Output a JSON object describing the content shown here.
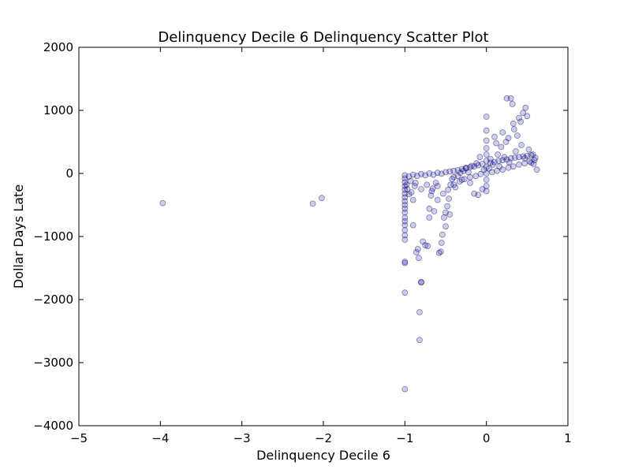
{
  "chart_data": {
    "type": "scatter",
    "title": "Delinquency Decile 6 Delinquency Scatter Plot",
    "xlabel": "Delinquency Decile 6",
    "ylabel": "Dollar Days Late",
    "xlim": [
      -5,
      1
    ],
    "ylim": [
      -4000,
      2000
    ],
    "xticks": [
      -5,
      -4,
      -3,
      -2,
      -1,
      0,
      1
    ],
    "yticks": [
      -4000,
      -3000,
      -2000,
      -1000,
      0,
      1000,
      2000
    ],
    "xtick_labels": [
      "−5",
      "−4",
      "−3",
      "−2",
      "−1",
      "0",
      "1"
    ],
    "ytick_labels": [
      "−4000",
      "−3000",
      "−2000",
      "−1000",
      "0",
      "1000",
      "2000"
    ],
    "grid": false,
    "legend": "none",
    "marker_color": "#0000ff",
    "marker_alpha": 0.2,
    "series": [
      {
        "points": [
          {
            "x": -3.97,
            "y": -470
          },
          {
            "x": -2.13,
            "y": -480
          },
          {
            "x": -2.02,
            "y": -390
          },
          {
            "x": -1.0,
            "y": -3420
          },
          {
            "x": -1.0,
            "y": -1890
          },
          {
            "x": -1.0,
            "y": -1420
          },
          {
            "x": -1.0,
            "y": -1400
          },
          {
            "x": -1.0,
            "y": -1050
          },
          {
            "x": -1.0,
            "y": -980
          },
          {
            "x": -1.0,
            "y": -900
          },
          {
            "x": -1.0,
            "y": -820
          },
          {
            "x": -1.0,
            "y": -760
          },
          {
            "x": -1.0,
            "y": -700
          },
          {
            "x": -1.0,
            "y": -620
          },
          {
            "x": -1.0,
            "y": -560
          },
          {
            "x": -1.0,
            "y": -500
          },
          {
            "x": -1.0,
            "y": -440
          },
          {
            "x": -1.0,
            "y": -380
          },
          {
            "x": -1.0,
            "y": -320
          },
          {
            "x": -1.0,
            "y": -260
          },
          {
            "x": -1.0,
            "y": -200
          },
          {
            "x": -1.0,
            "y": -140
          },
          {
            "x": -1.0,
            "y": -80
          },
          {
            "x": -1.0,
            "y": -30
          },
          {
            "x": -0.97,
            "y": -250
          },
          {
            "x": -0.95,
            "y": -330
          },
          {
            "x": -0.93,
            "y": -120
          },
          {
            "x": -0.9,
            "y": -820
          },
          {
            "x": -0.9,
            "y": -420
          },
          {
            "x": -0.88,
            "y": -200
          },
          {
            "x": -0.86,
            "y": -1250
          },
          {
            "x": -0.84,
            "y": -1200
          },
          {
            "x": -0.83,
            "y": -1340
          },
          {
            "x": -0.82,
            "y": -2640
          },
          {
            "x": -0.82,
            "y": -2200
          },
          {
            "x": -0.8,
            "y": -1730
          },
          {
            "x": -0.8,
            "y": -1720
          },
          {
            "x": -0.78,
            "y": -1080
          },
          {
            "x": -0.75,
            "y": -1140
          },
          {
            "x": -0.72,
            "y": -1150
          },
          {
            "x": -0.7,
            "y": -560
          },
          {
            "x": -0.7,
            "y": -700
          },
          {
            "x": -0.68,
            "y": -350
          },
          {
            "x": -0.66,
            "y": -240
          },
          {
            "x": -0.64,
            "y": -600
          },
          {
            "x": -0.62,
            "y": -150
          },
          {
            "x": -0.6,
            "y": -420
          },
          {
            "x": -0.58,
            "y": -1260
          },
          {
            "x": -0.56,
            "y": -1240
          },
          {
            "x": -0.55,
            "y": -1100
          },
          {
            "x": -0.54,
            "y": -970
          },
          {
            "x": -0.52,
            "y": -700
          },
          {
            "x": -0.5,
            "y": -840
          },
          {
            "x": -0.5,
            "y": -620
          },
          {
            "x": -0.48,
            "y": -520
          },
          {
            "x": -0.46,
            "y": -400
          },
          {
            "x": -0.45,
            "y": -650
          },
          {
            "x": -0.44,
            "y": -180
          },
          {
            "x": -0.42,
            "y": -90
          },
          {
            "x": -0.4,
            "y": -60
          },
          {
            "x": -0.38,
            "y": -220
          },
          {
            "x": -0.35,
            "y": -40
          },
          {
            "x": -0.32,
            "y": 10
          },
          {
            "x": -0.3,
            "y": -100
          },
          {
            "x": -0.28,
            "y": 40
          },
          {
            "x": -0.25,
            "y": 80
          },
          {
            "x": -0.22,
            "y": 20
          },
          {
            "x": -0.2,
            "y": -150
          },
          {
            "x": -0.18,
            "y": 120
          },
          {
            "x": -0.15,
            "y": -320
          },
          {
            "x": -0.12,
            "y": 160
          },
          {
            "x": -0.1,
            "y": -340
          },
          {
            "x": -0.08,
            "y": 260
          },
          {
            "x": -0.05,
            "y": -250
          },
          {
            "x": -0.03,
            "y": 60
          },
          {
            "x": 0.0,
            "y": 900
          },
          {
            "x": 0.0,
            "y": 680
          },
          {
            "x": 0.0,
            "y": 520
          },
          {
            "x": 0.0,
            "y": 400
          },
          {
            "x": 0.0,
            "y": 300
          },
          {
            "x": 0.0,
            "y": 200
          },
          {
            "x": 0.0,
            "y": 100
          },
          {
            "x": 0.0,
            "y": 0
          },
          {
            "x": 0.0,
            "y": -100
          },
          {
            "x": 0.0,
            "y": -200
          },
          {
            "x": 0.0,
            "y": -280
          },
          {
            "x": 0.03,
            "y": 80
          },
          {
            "x": 0.05,
            "y": 230
          },
          {
            "x": 0.08,
            "y": 140
          },
          {
            "x": 0.1,
            "y": 580
          },
          {
            "x": 0.12,
            "y": 480
          },
          {
            "x": 0.14,
            "y": 300
          },
          {
            "x": 0.16,
            "y": 110
          },
          {
            "x": 0.18,
            "y": 420
          },
          {
            "x": 0.2,
            "y": 650
          },
          {
            "x": 0.22,
            "y": 260
          },
          {
            "x": 0.24,
            "y": 500
          },
          {
            "x": 0.25,
            "y": 1190
          },
          {
            "x": 0.27,
            "y": 560
          },
          {
            "x": 0.28,
            "y": 180
          },
          {
            "x": 0.3,
            "y": 1190
          },
          {
            "x": 0.32,
            "y": 1100
          },
          {
            "x": 0.33,
            "y": 790
          },
          {
            "x": 0.34,
            "y": 700
          },
          {
            "x": 0.36,
            "y": 350
          },
          {
            "x": 0.38,
            "y": 600
          },
          {
            "x": 0.4,
            "y": 880
          },
          {
            "x": 0.42,
            "y": 820
          },
          {
            "x": 0.43,
            "y": 450
          },
          {
            "x": 0.45,
            "y": 960
          },
          {
            "x": 0.47,
            "y": 240
          },
          {
            "x": 0.48,
            "y": 1040
          },
          {
            "x": 0.5,
            "y": 910
          },
          {
            "x": 0.52,
            "y": 380
          },
          {
            "x": 0.55,
            "y": 170
          },
          {
            "x": 0.57,
            "y": 300
          },
          {
            "x": 0.58,
            "y": 150
          },
          {
            "x": 0.6,
            "y": 250
          },
          {
            "x": 0.62,
            "y": 60
          },
          {
            "x": -0.95,
            "y": -50
          },
          {
            "x": -0.9,
            "y": -20
          },
          {
            "x": -0.85,
            "y": -40
          },
          {
            "x": -0.8,
            "y": -10
          },
          {
            "x": -0.75,
            "y": -30
          },
          {
            "x": -0.7,
            "y": 0
          },
          {
            "x": -0.65,
            "y": -20
          },
          {
            "x": -0.6,
            "y": 10
          },
          {
            "x": -0.55,
            "y": -5
          },
          {
            "x": -0.5,
            "y": 20
          },
          {
            "x": -0.45,
            "y": 30
          },
          {
            "x": -0.4,
            "y": 40
          },
          {
            "x": -0.35,
            "y": 50
          },
          {
            "x": -0.3,
            "y": 70
          },
          {
            "x": -0.25,
            "y": 90
          },
          {
            "x": -0.2,
            "y": 100
          },
          {
            "x": -0.15,
            "y": 110
          },
          {
            "x": -0.1,
            "y": 130
          },
          {
            "x": -0.05,
            "y": 150
          },
          {
            "x": 0.05,
            "y": 170
          },
          {
            "x": 0.1,
            "y": 180
          },
          {
            "x": 0.15,
            "y": 200
          },
          {
            "x": 0.2,
            "y": 210
          },
          {
            "x": 0.25,
            "y": 220
          },
          {
            "x": 0.3,
            "y": 240
          },
          {
            "x": 0.35,
            "y": 250
          },
          {
            "x": 0.4,
            "y": 260
          },
          {
            "x": 0.45,
            "y": 270
          },
          {
            "x": 0.5,
            "y": 280
          },
          {
            "x": 0.55,
            "y": 290
          },
          {
            "x": -0.98,
            "y": -180
          },
          {
            "x": -0.92,
            "y": -300
          },
          {
            "x": -0.87,
            "y": -150
          },
          {
            "x": -0.8,
            "y": -250
          },
          {
            "x": -0.73,
            "y": -180
          },
          {
            "x": -0.67,
            "y": -280
          },
          {
            "x": -0.6,
            "y": -200
          },
          {
            "x": -0.53,
            "y": -320
          },
          {
            "x": -0.47,
            "y": -260
          },
          {
            "x": -0.4,
            "y": -180
          },
          {
            "x": -0.33,
            "y": -130
          },
          {
            "x": -0.27,
            "y": -90
          },
          {
            "x": -0.2,
            "y": -60
          },
          {
            "x": -0.13,
            "y": -40
          },
          {
            "x": -0.07,
            "y": -10
          },
          {
            "x": 0.07,
            "y": 20
          },
          {
            "x": 0.13,
            "y": 40
          },
          {
            "x": 0.2,
            "y": 60
          },
          {
            "x": 0.27,
            "y": 90
          },
          {
            "x": 0.33,
            "y": 110
          },
          {
            "x": 0.4,
            "y": 140
          },
          {
            "x": 0.47,
            "y": 160
          },
          {
            "x": 0.53,
            "y": 190
          },
          {
            "x": 0.59,
            "y": 210
          }
        ]
      }
    ]
  }
}
